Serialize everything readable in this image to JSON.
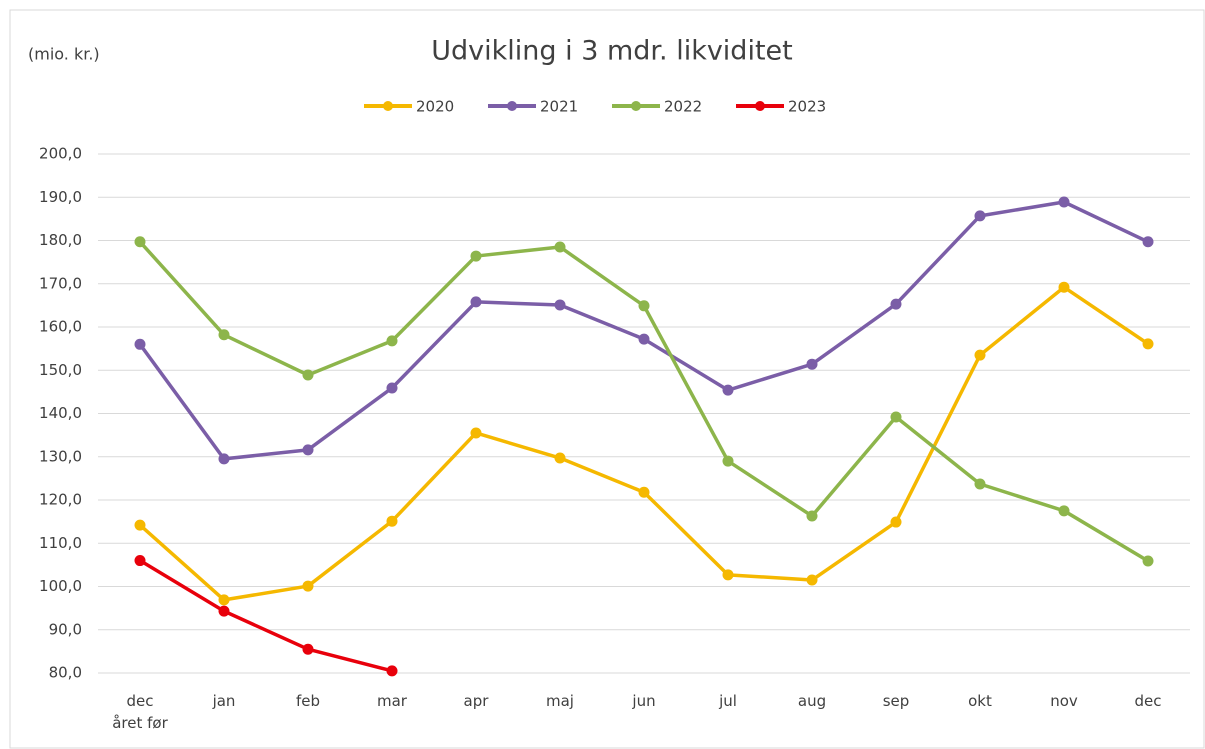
{
  "chart_data": {
    "type": "line",
    "title": "Udvikling i 3 mdr. likviditet",
    "y_label": "(mio. kr.)",
    "categories": [
      "dec\nåret før",
      "jan",
      "feb",
      "mar",
      "apr",
      "maj",
      "jun",
      "jul",
      "aug",
      "sep",
      "okt",
      "nov",
      "dec"
    ],
    "series": [
      {
        "name": "2020",
        "color": "#f5b800",
        "values": [
          114.2,
          96.9,
          100.1,
          115.1,
          135.5,
          129.7,
          121.8,
          102.7,
          101.5,
          114.9,
          153.5,
          169.2,
          156.1
        ]
      },
      {
        "name": "2021",
        "color": "#7b5ea7",
        "values": [
          156,
          129.5,
          131.6,
          145.9,
          165.8,
          165.1,
          157.2,
          145.4,
          151.4,
          165.3,
          185.7,
          188.9,
          179.7
        ]
      },
      {
        "name": "2022",
        "color": "#8db54b",
        "values": [
          179.7,
          158.2,
          148.9,
          156.8,
          176.4,
          178.5,
          164.9,
          129,
          116.3,
          139.2,
          123.7,
          117.5,
          105.9
        ]
      },
      {
        "name": "2023",
        "color": "#e8000b",
        "values": [
          106,
          94.3,
          85.5,
          80.5,
          null,
          null,
          null,
          null,
          null,
          null,
          null,
          null,
          null
        ]
      }
    ],
    "ylim": [
      80,
      200
    ],
    "yticks": [
      {
        "value": 80,
        "label": "80,0"
      },
      {
        "value": 90,
        "label": "90,0"
      },
      {
        "value": 100,
        "label": "100,0"
      },
      {
        "value": 110,
        "label": "110,0"
      },
      {
        "value": 120,
        "label": "120,0"
      },
      {
        "value": 130,
        "label": "130,0"
      },
      {
        "value": 140,
        "label": "140,0"
      },
      {
        "value": 150,
        "label": "150,0"
      },
      {
        "value": 160,
        "label": "160,0"
      },
      {
        "value": 170,
        "label": "170,0"
      },
      {
        "value": 180,
        "label": "180,0"
      },
      {
        "value": 190,
        "label": "190,0"
      },
      {
        "value": 200,
        "label": "200,0"
      }
    ],
    "grid": true,
    "legend": "top"
  }
}
